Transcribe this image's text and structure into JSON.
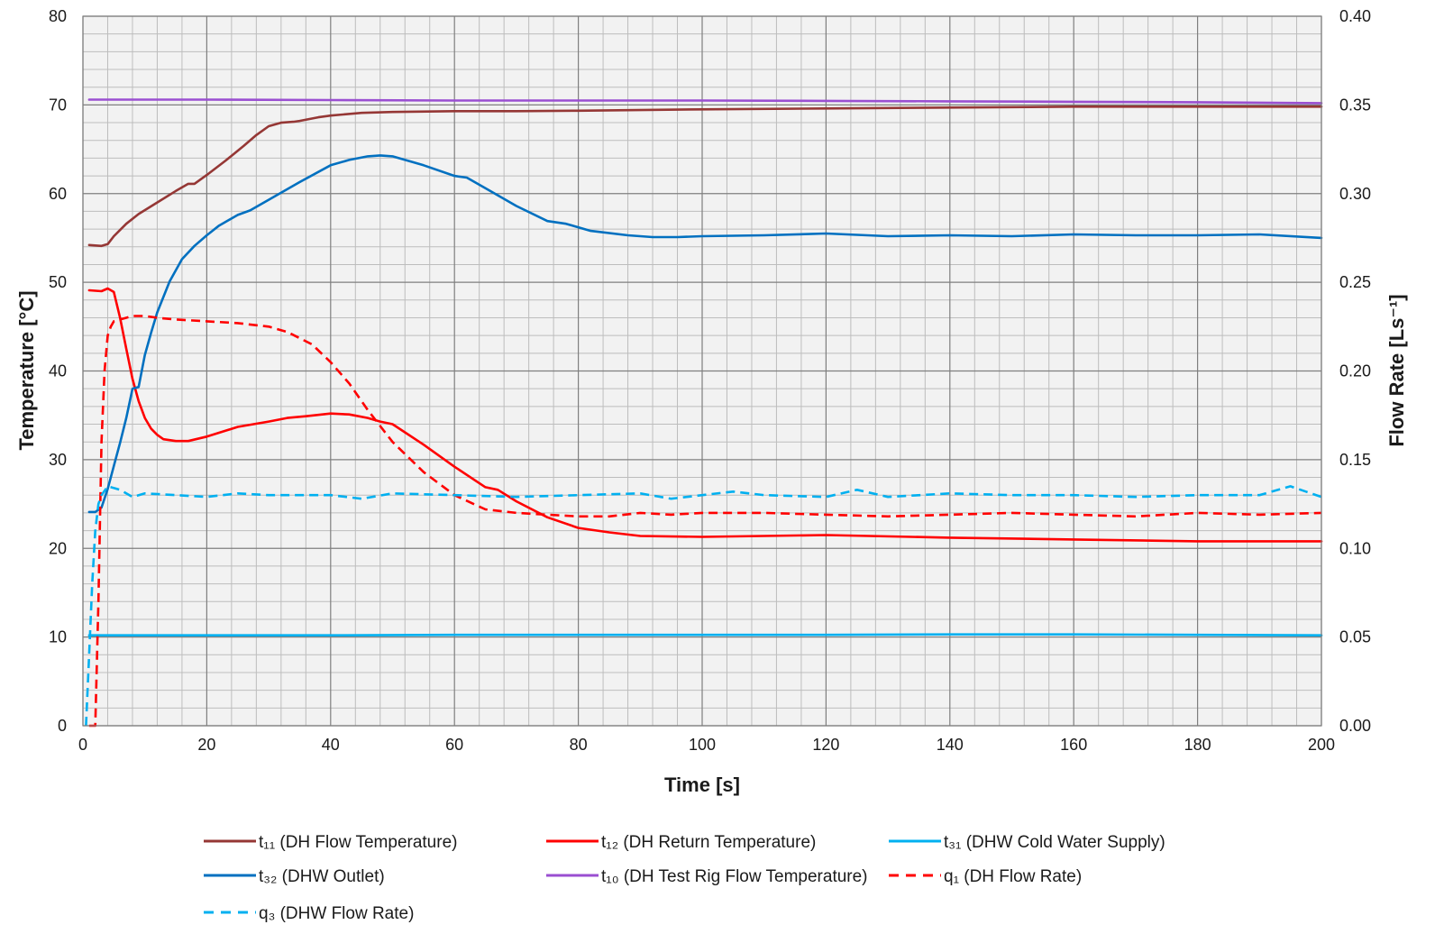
{
  "chart_data": {
    "type": "line",
    "title": "",
    "xlabel": "Time [s]",
    "ylabel": "Temperature [°C]",
    "y2label": "Flow Rate [Ls⁻¹]",
    "xlim": [
      0,
      200
    ],
    "ylim": [
      0,
      80
    ],
    "y2lim": [
      0,
      0.4
    ],
    "x_ticks": [
      "0",
      "20",
      "40",
      "60",
      "80",
      "100",
      "120",
      "140",
      "160",
      "180",
      "200"
    ],
    "y_ticks": [
      "0",
      "10",
      "20",
      "30",
      "40",
      "50",
      "60",
      "70",
      "80"
    ],
    "y2_ticks": [
      "0.00",
      "0.05",
      "0.10",
      "0.15",
      "0.20",
      "0.25",
      "0.30",
      "0.35",
      "0.40"
    ],
    "grid": true,
    "legend_position": "bottom",
    "series": [
      {
        "name": "t₁₁ (DH Flow Temperature)",
        "axis": "left",
        "color": "#953735",
        "dash": "solid",
        "x": [
          1,
          3,
          4,
          5,
          7,
          9,
          12,
          15,
          17,
          18,
          20,
          23,
          26,
          28,
          30,
          32,
          34,
          35,
          38,
          40,
          45,
          50,
          60,
          70,
          80,
          100,
          120,
          140,
          160,
          180,
          200
        ],
        "values": [
          54.2,
          54.1,
          54.3,
          55.2,
          56.6,
          57.7,
          59.0,
          60.3,
          61.1,
          61.1,
          62.1,
          63.7,
          65.4,
          66.6,
          67.6,
          68.0,
          68.1,
          68.2,
          68.6,
          68.8,
          69.1,
          69.2,
          69.3,
          69.3,
          69.35,
          69.5,
          69.6,
          69.7,
          69.8,
          69.8,
          69.8
        ]
      },
      {
        "name": "t₁₂ (DH Return Temperature)",
        "axis": "left",
        "color": "#ff0000",
        "dash": "solid",
        "x": [
          1,
          3,
          4,
          5,
          6,
          7,
          8,
          9,
          10,
          11,
          12,
          13,
          15,
          17,
          20,
          25,
          30,
          33,
          36,
          40,
          43,
          46,
          48,
          50,
          55,
          60,
          65,
          67,
          70,
          75,
          80,
          85,
          90,
          100,
          120,
          140,
          160,
          180,
          200
        ],
        "values": [
          49.1,
          49.0,
          49.3,
          48.9,
          46.0,
          42.5,
          39.1,
          36.6,
          34.7,
          33.5,
          32.8,
          32.3,
          32.1,
          32.1,
          32.6,
          33.7,
          34.3,
          34.7,
          34.9,
          35.2,
          35.1,
          34.7,
          34.3,
          34.0,
          31.7,
          29.2,
          26.9,
          26.6,
          25.3,
          23.5,
          22.3,
          21.8,
          21.4,
          21.3,
          21.5,
          21.2,
          21.0,
          20.8,
          20.8
        ]
      },
      {
        "name": "t₃₁ (DHW Cold Water Supply)",
        "axis": "left",
        "color": "#00b0f0",
        "dash": "solid",
        "x": [
          1,
          2,
          5,
          20,
          40,
          60,
          80,
          100,
          120,
          140,
          160,
          180,
          200
        ],
        "values": [
          10.2,
          10.2,
          10.2,
          10.2,
          10.2,
          10.25,
          10.25,
          10.25,
          10.25,
          10.3,
          10.3,
          10.25,
          10.2
        ]
      },
      {
        "name": "t₃₂ (DHW Outlet)",
        "axis": "left",
        "color": "#0070c0",
        "dash": "solid",
        "x": [
          1,
          2,
          3,
          4,
          5,
          6,
          7,
          8,
          9,
          10,
          11,
          12,
          14,
          16,
          18,
          20,
          22,
          25,
          27,
          30,
          35,
          40,
          43,
          46,
          48,
          50,
          55,
          60,
          62,
          65,
          70,
          75,
          78,
          82,
          88,
          92,
          96,
          100,
          110,
          120,
          130,
          140,
          150,
          160,
          170,
          180,
          190,
          200
        ],
        "values": [
          24.1,
          24.1,
          24.6,
          26.7,
          29.3,
          31.9,
          34.7,
          38.0,
          38.2,
          41.8,
          44.3,
          46.6,
          50.1,
          52.6,
          54.1,
          55.3,
          56.4,
          57.6,
          58.1,
          59.3,
          61.3,
          63.2,
          63.8,
          64.2,
          64.3,
          64.2,
          63.2,
          62.0,
          61.8,
          60.6,
          58.6,
          56.9,
          56.6,
          55.8,
          55.3,
          55.1,
          55.1,
          55.2,
          55.3,
          55.5,
          55.2,
          55.3,
          55.2,
          55.4,
          55.3,
          55.3,
          55.4,
          55.0
        ]
      },
      {
        "name": "t₁₀ (DH Test Rig Flow Temperature)",
        "axis": "left",
        "color": "#9a4fd1",
        "dash": "solid",
        "x": [
          1,
          20,
          40,
          60,
          80,
          100,
          120,
          140,
          160,
          180,
          200
        ],
        "values": [
          70.6,
          70.6,
          70.55,
          70.5,
          70.5,
          70.5,
          70.45,
          70.4,
          70.35,
          70.3,
          70.2
        ]
      },
      {
        "name": "q₁ (DH Flow Rate)",
        "axis": "right",
        "color": "#ff0000",
        "dash": "dashed",
        "x": [
          1,
          1.5,
          2,
          2.5,
          3,
          3.5,
          4,
          4.5,
          5,
          6,
          7,
          8,
          10,
          12,
          15,
          20,
          25,
          30,
          33,
          37,
          40,
          43,
          46,
          50,
          55,
          60,
          65,
          70,
          75,
          80,
          85,
          90,
          95,
          100,
          110,
          120,
          130,
          140,
          150,
          160,
          170,
          180,
          190,
          200
        ],
        "values": [
          0.0,
          0.0,
          0.0,
          0.07,
          0.16,
          0.2,
          0.22,
          0.225,
          0.228,
          0.229,
          0.23,
          0.231,
          0.231,
          0.23,
          0.229,
          0.228,
          0.227,
          0.225,
          0.222,
          0.215,
          0.205,
          0.193,
          0.178,
          0.16,
          0.143,
          0.13,
          0.122,
          0.12,
          0.119,
          0.118,
          0.118,
          0.12,
          0.119,
          0.12,
          0.12,
          0.119,
          0.118,
          0.119,
          0.12,
          0.119,
          0.118,
          0.12,
          0.119,
          0.12
        ]
      },
      {
        "name": "q₃ (DHW Flow Rate)",
        "axis": "right",
        "color": "#00b0f0",
        "dash": "dashed",
        "x": [
          0.5,
          1,
          1.5,
          2,
          2.5,
          3,
          4,
          6,
          8,
          10,
          15,
          20,
          25,
          30,
          40,
          45,
          50,
          60,
          70,
          80,
          90,
          95,
          100,
          105,
          110,
          120,
          125,
          130,
          140,
          150,
          160,
          170,
          180,
          190,
          195,
          200
        ],
        "values": [
          0.0,
          0.04,
          0.08,
          0.11,
          0.125,
          0.13,
          0.135,
          0.133,
          0.129,
          0.131,
          0.13,
          0.129,
          0.131,
          0.13,
          0.13,
          0.128,
          0.131,
          0.13,
          0.129,
          0.13,
          0.131,
          0.128,
          0.13,
          0.132,
          0.13,
          0.129,
          0.133,
          0.129,
          0.131,
          0.13,
          0.13,
          0.129,
          0.13,
          0.13,
          0.135,
          0.129
        ]
      }
    ]
  }
}
